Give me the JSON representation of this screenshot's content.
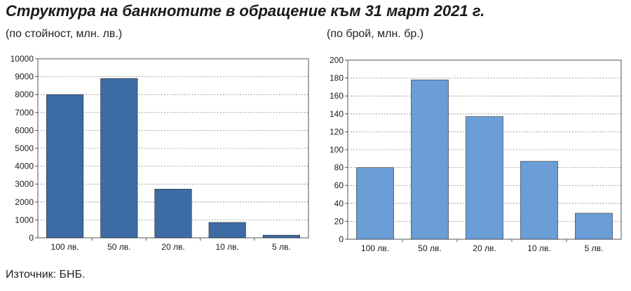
{
  "title": "Структура на банкнотите в обращение към 31 март 2021 г.",
  "source": "Източник: БНБ.",
  "chart_data": [
    {
      "type": "bar",
      "subtitle": "(по стойност, млн. лв.)",
      "categories": [
        "100 лв.",
        "50 лв.",
        "20 лв.",
        "10 лв.",
        "5 лв."
      ],
      "values": [
        8000,
        8900,
        2720,
        860,
        150
      ],
      "ylim": [
        0,
        10000
      ],
      "yticks": [
        0,
        1000,
        2000,
        3000,
        4000,
        5000,
        6000,
        7000,
        8000,
        9000,
        10000
      ],
      "color": "#3d6ba3",
      "grid": true
    },
    {
      "type": "bar",
      "subtitle": "(по брой, млн. бр.)",
      "categories": [
        "100 лв.",
        "50 лв.",
        "20 лв.",
        "10 лв.",
        "5 лв."
      ],
      "values": [
        80,
        178,
        137,
        87,
        29
      ],
      "ylim": [
        0,
        200
      ],
      "yticks": [
        0,
        20,
        40,
        60,
        80,
        100,
        120,
        140,
        160,
        180,
        200
      ],
      "color": "#6b9dd6",
      "grid": true
    }
  ]
}
